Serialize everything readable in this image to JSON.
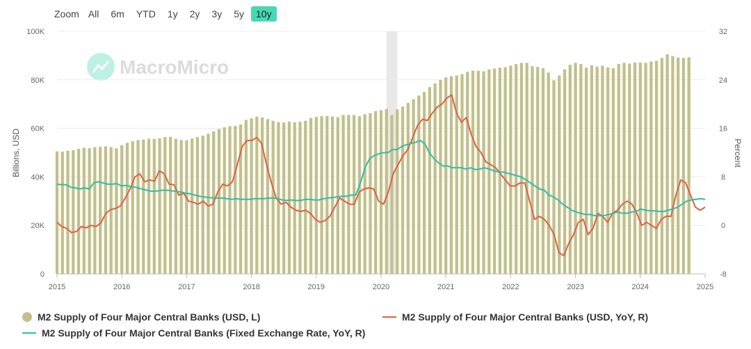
{
  "zoom": {
    "label": "Zoom",
    "options": [
      "All",
      "6m",
      "YTD",
      "1y",
      "2y",
      "3y",
      "5y",
      "10y"
    ],
    "selected": "10y"
  },
  "watermark": "MacroMicro",
  "colors": {
    "bars": "#c2c08a",
    "usd_yoy": "#e06040",
    "fixed_yoy": "#2fbf9f",
    "accent": "#48d7b3",
    "shade": "#e8e8e8"
  },
  "chart_data": {
    "type": "bar+line",
    "title": "",
    "xlabel": "",
    "ylabel_left": "Billions, USD",
    "ylabel_right": "Percent",
    "xlim": [
      "2015-01",
      "2025-01"
    ],
    "ylim_left": [
      0,
      100000
    ],
    "ylim_right": [
      -8,
      32
    ],
    "left_ticks": [
      "0",
      "20K",
      "40K",
      "60K",
      "80K",
      "100K"
    ],
    "right_ticks": [
      "-8",
      "0",
      "8",
      "16",
      "24",
      "32"
    ],
    "x_ticks": [
      "2015",
      "2016",
      "2017",
      "2018",
      "2019",
      "2020",
      "2021",
      "2022",
      "2023",
      "2024",
      "2025"
    ],
    "shaded_period": [
      "2020-02",
      "2020-04"
    ],
    "legend": "bottom",
    "series": [
      {
        "name": "M2 Supply of Four Major Central Banks (USD, L)",
        "type": "bar",
        "axis": "left",
        "start": "2015-01",
        "frequency": "monthly",
        "values": [
          50500,
          50400,
          50800,
          51000,
          51600,
          52000,
          51800,
          52200,
          52400,
          52600,
          52300,
          51800,
          53000,
          54000,
          54700,
          55200,
          55400,
          55700,
          55600,
          55900,
          56400,
          56500,
          55700,
          55200,
          55100,
          55800,
          56400,
          57000,
          57800,
          58800,
          59700,
          60400,
          60900,
          61000,
          61600,
          63500,
          64100,
          64800,
          64500,
          63800,
          63100,
          62600,
          62400,
          62800,
          62500,
          62700,
          63100,
          64300,
          64700,
          65000,
          65100,
          64900,
          64600,
          65500,
          65500,
          65500,
          65000,
          65800,
          66300,
          67100,
          67500,
          68000,
          65500,
          67800,
          69000,
          70500,
          72000,
          73500,
          75000,
          77000,
          78500,
          80000,
          81000,
          81500,
          81800,
          82300,
          83300,
          83800,
          83700,
          83500,
          84300,
          84600,
          85000,
          85200,
          85800,
          86500,
          87000,
          87000,
          85600,
          85300,
          84800,
          83000,
          79800,
          81800,
          84300,
          86200,
          87000,
          86500,
          85000,
          86000,
          85400,
          85800,
          85100,
          84800,
          86500,
          87000,
          86700,
          87100,
          87100,
          87000,
          87500,
          87800,
          89000,
          90500,
          89800,
          89200,
          89000,
          89300
        ]
      },
      {
        "name": "M2 Supply of Four Major Central Banks (USD, YoY, R)",
        "type": "line",
        "axis": "right",
        "start": "2015-01",
        "frequency": "monthly",
        "values": [
          0.5,
          -0.2,
          -0.5,
          -1.2,
          -1.0,
          -0.2,
          -0.4,
          0.0,
          -0.2,
          0.4,
          2.0,
          2.6,
          2.8,
          3.2,
          4.5,
          6.0,
          8.0,
          8.5,
          7.2,
          7.5,
          7.3,
          9.0,
          8.5,
          6.8,
          6.7,
          5.0,
          5.3,
          4.0,
          3.8,
          3.5,
          4.0,
          3.2,
          3.5,
          5.5,
          6.8,
          6.5,
          7.2,
          10.0,
          13.0,
          14.0,
          14.0,
          14.5,
          13.5,
          10.0,
          7.0,
          4.5,
          3.5,
          3.8,
          3.0,
          2.5,
          2.3,
          2.5,
          2.0,
          1.0,
          0.5,
          0.8,
          1.5,
          3.0,
          4.5,
          4.0,
          3.5,
          3.5,
          5.5,
          6.0,
          6.2,
          6.0,
          4.0,
          3.5,
          5.5,
          8.5,
          10.0,
          11.5,
          12.5,
          14.5,
          16.5,
          17.5,
          17.3,
          18.5,
          19.5,
          20.0,
          21.0,
          21.5,
          18.5,
          17.0,
          17.8,
          15.0,
          13.0,
          12.0,
          10.5,
          10.0,
          9.5,
          8.5,
          7.5,
          6.5,
          6.5,
          7.0,
          7.0,
          4.0,
          1.0,
          1.5,
          1.0,
          0.0,
          -1.5,
          -4.5,
          -5.0,
          -3.0,
          -1.5,
          0.5,
          1.0,
          -1.5,
          -0.5,
          2.0,
          1.5,
          0.5,
          2.0,
          2.5,
          3.5,
          4.0,
          3.5,
          2.0,
          0.0,
          0.5,
          0.0,
          -0.5,
          1.0,
          1.5,
          1.5,
          5.0,
          7.5,
          7.0,
          5.0,
          3.0,
          2.5,
          3.0
        ]
      },
      {
        "name": "M2 Supply of Four Major Central Banks (Fixed Exchange Rate, YoY, R)",
        "type": "line",
        "axis": "right",
        "start": "2015-01",
        "frequency": "monthly",
        "values": [
          6.8,
          6.7,
          6.7,
          6.3,
          6.2,
          6.0,
          6.2,
          6.0,
          7.0,
          7.2,
          7.0,
          6.8,
          6.8,
          6.9,
          6.5,
          6.6,
          6.4,
          6.3,
          6.1,
          5.9,
          5.7,
          5.6,
          5.7,
          5.8,
          5.8,
          5.7,
          5.6,
          5.5,
          5.3,
          5.2,
          5.0,
          4.8,
          4.7,
          4.6,
          4.5,
          4.5,
          4.5,
          4.4,
          4.3,
          4.4,
          4.3,
          4.3,
          4.3,
          4.4,
          4.4,
          4.4,
          4.5,
          4.5,
          4.4,
          4.2,
          4.1,
          4.2,
          4.1,
          4.1,
          4.3,
          4.3,
          4.2,
          4.2,
          4.4,
          4.5,
          4.6,
          4.7,
          4.8,
          4.8,
          5.0,
          5.0,
          7.0,
          9.5,
          11.0,
          11.5,
          11.8,
          12.0,
          12.0,
          12.5,
          12.5,
          13.0,
          13.3,
          13.5,
          13.7,
          14.0,
          13.5,
          12.0,
          11.0,
          10.3,
          9.8,
          9.8,
          9.5,
          9.5,
          9.5,
          9.3,
          9.5,
          9.2,
          9.3,
          9.5,
          9.3,
          9.0,
          8.8,
          8.8,
          8.6,
          8.4,
          8.2,
          8.0,
          7.5,
          7.0,
          6.5,
          6.0,
          5.8,
          5.0,
          4.7,
          4.2,
          3.5,
          3.0,
          2.5,
          2.2,
          2.0,
          1.8,
          1.8,
          1.6,
          1.6,
          1.6,
          1.8,
          2.0,
          2.2,
          2.0,
          2.0,
          2.2,
          2.3,
          2.7,
          2.5,
          2.4,
          2.4,
          2.3,
          2.3,
          2.5,
          2.7,
          3.0,
          3.5,
          4.0,
          4.2,
          4.3,
          4.4,
          4.3
        ]
      }
    ]
  }
}
